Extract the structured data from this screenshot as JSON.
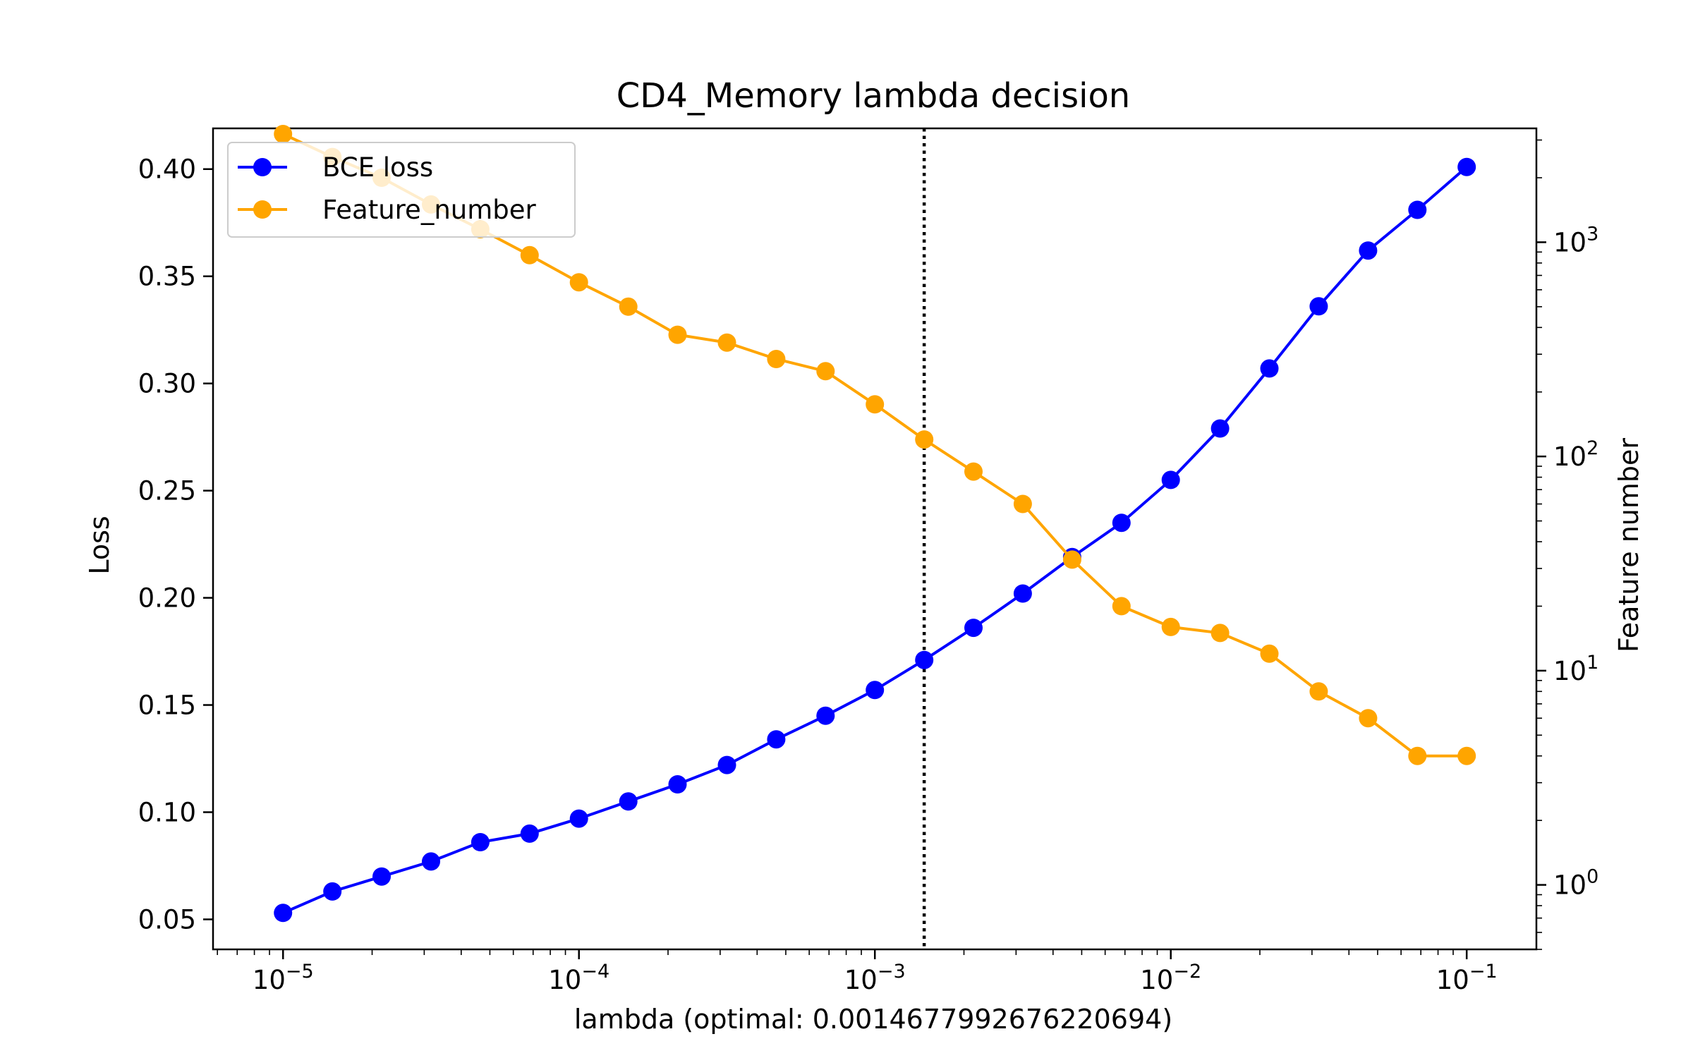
{
  "chart_data": {
    "type": "line",
    "title": "CD4_Memory lambda decision",
    "xlabel": "lambda (optimal: 0.0014677992676220694)",
    "ylabel_left": "Loss",
    "ylabel_right": "Feature number",
    "x_scale": "log",
    "y_left_scale": "linear",
    "y_right_scale": "log",
    "xlim": [
      5.8e-06,
      0.172
    ],
    "ylim_left": [
      0.036,
      0.419
    ],
    "ylim_right": [
      0.5,
      3400
    ],
    "x_tick_labels": [
      {
        "base": "10",
        "exp": "−5",
        "value": 1e-05
      },
      {
        "base": "10",
        "exp": "−4",
        "value": 0.0001
      },
      {
        "base": "10",
        "exp": "−3",
        "value": 0.001
      },
      {
        "base": "10",
        "exp": "−2",
        "value": 0.01
      },
      {
        "base": "10",
        "exp": "−1",
        "value": 0.1
      }
    ],
    "y_left_tick_labels": [
      "0.05",
      "0.10",
      "0.15",
      "0.20",
      "0.25",
      "0.30",
      "0.35",
      "0.40"
    ],
    "y_left_tick_values": [
      0.05,
      0.1,
      0.15,
      0.2,
      0.25,
      0.3,
      0.35,
      0.4
    ],
    "y_right_tick_labels": [
      {
        "base": "10",
        "exp": "0",
        "value": 1
      },
      {
        "base": "10",
        "exp": "1",
        "value": 10
      },
      {
        "base": "10",
        "exp": "2",
        "value": 100
      },
      {
        "base": "10",
        "exp": "3",
        "value": 1000
      }
    ],
    "x": [
      1e-05,
      1.468e-05,
      2.154e-05,
      3.162e-05,
      4.642e-05,
      6.813e-05,
      0.0001,
      0.0001468,
      0.0002154,
      0.0003162,
      0.0004642,
      0.0006813,
      0.001,
      0.001468,
      0.002154,
      0.003162,
      0.004642,
      0.006813,
      0.01,
      0.01468,
      0.02154,
      0.03162,
      0.04642,
      0.06813,
      0.1
    ],
    "series": [
      {
        "name": "BCE loss",
        "axis": "left",
        "color": "#0000ff",
        "values": [
          0.053,
          0.063,
          0.07,
          0.077,
          0.086,
          0.09,
          0.097,
          0.105,
          0.113,
          0.122,
          0.134,
          0.145,
          0.157,
          0.171,
          0.186,
          0.202,
          0.219,
          0.235,
          0.255,
          0.279,
          0.307,
          0.336,
          0.362,
          0.381,
          0.401
        ]
      },
      {
        "name": "Feature_number",
        "axis": "right",
        "color": "#ffa500",
        "values": [
          3200,
          2500,
          2000,
          1500,
          1150,
          870,
          650,
          500,
          370,
          340,
          285,
          250,
          175,
          120,
          85,
          60,
          33,
          20,
          16,
          15,
          12,
          8,
          6,
          4,
          4
        ]
      }
    ],
    "vline": {
      "x": 0.0014677992676220694,
      "style": "dotted",
      "color": "#000000"
    },
    "legend": {
      "position": "upper left"
    },
    "grid": false
  }
}
